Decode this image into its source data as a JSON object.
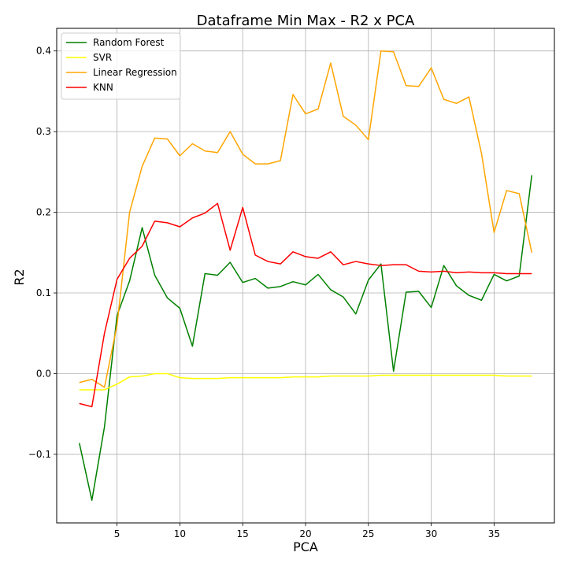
{
  "chart_data": {
    "type": "line",
    "title": "Dataframe Min Max - R2 x PCA",
    "xlabel": "PCA",
    "ylabel": "R2",
    "xlim": [
      0.2,
      39.8
    ],
    "ylim": [
      -0.185,
      0.428
    ],
    "xticks": [
      5,
      10,
      15,
      20,
      25,
      30,
      35
    ],
    "xtick_labels": [
      "5",
      "10",
      "15",
      "20",
      "25",
      "30",
      "35"
    ],
    "yticks": [
      -0.1,
      0.0,
      0.1,
      0.2,
      0.3,
      0.4
    ],
    "ytick_labels": [
      "−0.1",
      "0.0",
      "0.1",
      "0.2",
      "0.3",
      "0.4"
    ],
    "grid": true,
    "legend_position": "upper-left",
    "x": [
      2,
      3,
      4,
      5,
      6,
      7,
      8,
      9,
      10,
      11,
      12,
      13,
      14,
      15,
      16,
      17,
      18,
      19,
      20,
      21,
      22,
      23,
      24,
      25,
      26,
      27,
      28,
      29,
      30,
      31,
      32,
      33,
      34,
      35,
      36,
      37,
      38
    ],
    "series": [
      {
        "name": "Random Forest",
        "color": "#008000",
        "values": [
          -0.086,
          -0.157,
          -0.066,
          0.072,
          0.115,
          0.181,
          0.122,
          0.094,
          0.081,
          0.034,
          0.124,
          0.122,
          0.138,
          0.113,
          0.118,
          0.106,
          0.108,
          0.114,
          0.11,
          0.123,
          0.104,
          0.095,
          0.074,
          0.116,
          0.136,
          0.003,
          0.101,
          0.102,
          0.082,
          0.134,
          0.109,
          0.097,
          0.091,
          0.123,
          0.115,
          0.121,
          0.246
        ]
      },
      {
        "name": "SVR",
        "color": "#ffff00",
        "values": [
          -0.02,
          -0.02,
          -0.02,
          -0.013,
          -0.004,
          -0.003,
          0.0,
          0.0,
          -0.005,
          -0.006,
          -0.006,
          -0.006,
          -0.005,
          -0.005,
          -0.005,
          -0.005,
          -0.005,
          -0.004,
          -0.004,
          -0.004,
          -0.003,
          -0.003,
          -0.003,
          -0.003,
          -0.002,
          -0.002,
          -0.002,
          -0.002,
          -0.002,
          -0.002,
          -0.002,
          -0.002,
          -0.002,
          -0.002,
          -0.003,
          -0.003,
          -0.003
        ]
      },
      {
        "name": "Linear Regression",
        "color": "#ffa500",
        "values": [
          -0.011,
          -0.007,
          -0.017,
          0.06,
          0.2,
          0.257,
          0.292,
          0.291,
          0.27,
          0.285,
          0.276,
          0.274,
          0.3,
          0.272,
          0.26,
          0.26,
          0.264,
          0.346,
          0.322,
          0.328,
          0.385,
          0.319,
          0.308,
          0.29,
          0.4,
          0.399,
          0.357,
          0.356,
          0.379,
          0.34,
          0.335,
          0.343,
          0.273,
          0.175,
          0.227,
          0.223,
          0.15
        ]
      },
      {
        "name": "KNN",
        "color": "#ff0000",
        "values": [
          -0.037,
          -0.041,
          0.05,
          0.117,
          0.143,
          0.158,
          0.189,
          0.187,
          0.182,
          0.193,
          0.199,
          0.211,
          0.153,
          0.206,
          0.147,
          0.139,
          0.136,
          0.151,
          0.145,
          0.143,
          0.151,
          0.135,
          0.139,
          0.136,
          0.134,
          0.135,
          0.135,
          0.127,
          0.126,
          0.127,
          0.125,
          0.126,
          0.125,
          0.125,
          0.124,
          0.124,
          0.124
        ]
      }
    ]
  }
}
